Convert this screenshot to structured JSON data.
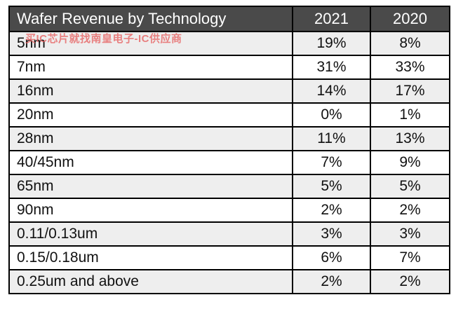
{
  "table": {
    "headers": [
      "Wafer Revenue by Technology",
      "2021",
      "2020"
    ],
    "rows": [
      [
        "5nm",
        "19%",
        "8%"
      ],
      [
        "7nm",
        "31%",
        "33%"
      ],
      [
        "16nm",
        "14%",
        "17%"
      ],
      [
        "20nm",
        "0%",
        "1%"
      ],
      [
        "28nm",
        "11%",
        "13%"
      ],
      [
        "40/45nm",
        "7%",
        "9%"
      ],
      [
        "65nm",
        "5%",
        "5%"
      ],
      [
        "90nm",
        "2%",
        "2%"
      ],
      [
        "0.11/0.13um",
        "3%",
        "3%"
      ],
      [
        "0.15/0.18um",
        "6%",
        "7%"
      ],
      [
        "0.25um and above",
        "2%",
        "2%"
      ]
    ]
  },
  "watermark": "买IC芯片就找南皇电子-IC供应商",
  "colors": {
    "header_bg": "#4a4a4a",
    "header_text": "#ffffff",
    "row_shade": "#eeeeee",
    "border": "#000000",
    "watermark": "#e65a5a"
  }
}
